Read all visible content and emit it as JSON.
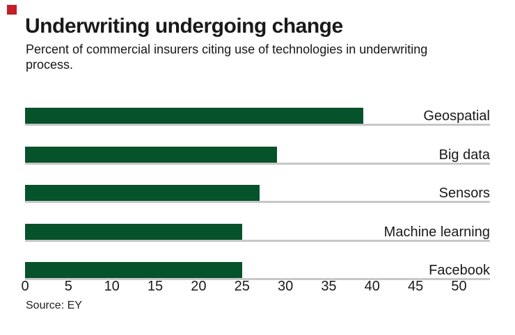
{
  "chart": {
    "title": "Underwriting undergoing change",
    "subtitle": "Percent of commercial insurers citing use of technologies in underwriting process.",
    "source": "Source: EY"
  },
  "chart_data": {
    "type": "bar",
    "orientation": "horizontal",
    "title": "Underwriting undergoing change",
    "subtitle": "Percent of commercial insurers citing use of technologies in underwriting process.",
    "categories": [
      "Geospatial",
      "Big data",
      "Sensors",
      "Machine learning",
      "Facebook"
    ],
    "values": [
      39,
      29,
      27,
      25,
      25
    ],
    "xlabel": "",
    "ylabel": "",
    "xlim": [
      0,
      50
    ],
    "x_ticks": [
      0,
      5,
      10,
      15,
      20,
      25,
      30,
      35,
      40,
      45,
      50
    ],
    "grid": false,
    "legend": false,
    "source": "Source: EY"
  },
  "colors": {
    "bar": "#06522a",
    "baseline": "#c7c7c7",
    "brand_square": "#c41e29",
    "text": "#191919"
  }
}
